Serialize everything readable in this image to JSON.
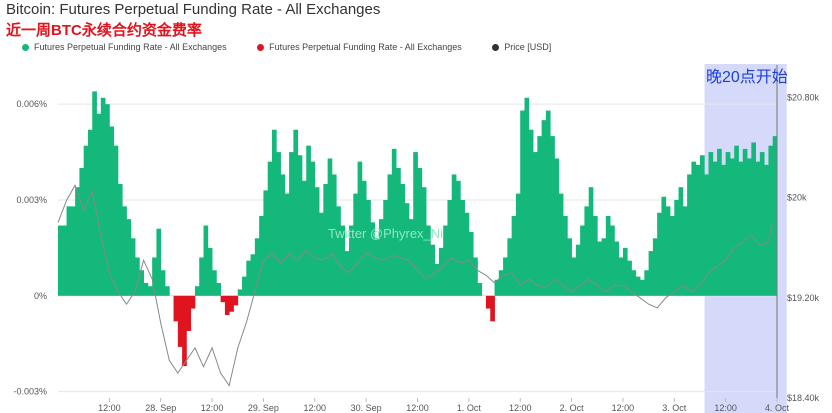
{
  "title": "Bitcoin: Futures Perpetual Funding Rate - All Exchanges",
  "subtitle": "近一周BTC永续合约资金费率",
  "legend": [
    {
      "label": "Futures Perpetual Funding Rate - All Exchanges",
      "color": "#14b87a"
    },
    {
      "label": "Futures Perpetual Funding Rate - All Exchanges",
      "color": "#e0141e"
    },
    {
      "label": "Price [USD]",
      "color": "#333333"
    }
  ],
  "watermark": "Twitter @Phyrex_Ni",
  "annotation": "晚20点开始",
  "colors": {
    "positive": "#14b87a",
    "negative": "#e0141e",
    "price": "#888888",
    "highlight": "#c8cdf8"
  },
  "chart_data": {
    "type": "bar",
    "title": "Bitcoin: Futures Perpetual Funding Rate - All Exchanges",
    "subtitle": "近一周BTC永续合约资金费率",
    "x_ticks": [
      "12:00",
      "28. Sep",
      "12:00",
      "29. Sep",
      "12:00",
      "30. Sep",
      "12:00",
      "1. Oct",
      "12:00",
      "2. Oct",
      "12:00",
      "3. Oct",
      "12:00",
      "4. Oct"
    ],
    "x_range_hours": [
      0,
      168
    ],
    "y_left_ticks": [
      "-0.003%",
      "0%",
      "0.003%",
      "0.006%"
    ],
    "y_left_range": [
      -0.0032,
      0.0066
    ],
    "y_right_ticks": [
      "$18.40k",
      "$19.20k",
      "$20k",
      "$20.80k"
    ],
    "y_right_range": [
      18400,
      20900
    ],
    "funding_rate_percent": [
      [
        0,
        0.0022
      ],
      [
        2,
        0.0028
      ],
      [
        4,
        0.0034
      ],
      [
        5,
        0.004
      ],
      [
        6,
        0.0047
      ],
      [
        7,
        0.0052
      ],
      [
        8,
        0.0064
      ],
      [
        9,
        0.0057
      ],
      [
        10,
        0.0062
      ],
      [
        11,
        0.006
      ],
      [
        12,
        0.0053
      ],
      [
        13,
        0.0047
      ],
      [
        14,
        0.0035
      ],
      [
        15,
        0.0028
      ],
      [
        16,
        0.0024
      ],
      [
        17,
        0.0018
      ],
      [
        18,
        0.0012
      ],
      [
        19,
        0.0008
      ],
      [
        20,
        0.0004
      ],
      [
        21,
        0.0003
      ],
      [
        22,
        0.0012
      ],
      [
        23,
        0.0021
      ],
      [
        24,
        0.0008
      ],
      [
        25,
        0.0003
      ],
      [
        26,
        0.0
      ],
      [
        27,
        -0.0008
      ],
      [
        28,
        -0.0016
      ],
      [
        29,
        -0.0022
      ],
      [
        30,
        -0.0011
      ],
      [
        31,
        -0.0004
      ],
      [
        32,
        0.0003
      ],
      [
        33,
        0.0012
      ],
      [
        34,
        0.0022
      ],
      [
        35,
        0.0015
      ],
      [
        36,
        0.0008
      ],
      [
        37,
        0.0004
      ],
      [
        38,
        -0.0002
      ],
      [
        39,
        -0.0006
      ],
      [
        40,
        -0.0005
      ],
      [
        41,
        -0.0003
      ],
      [
        42,
        0.0002
      ],
      [
        43,
        0.0006
      ],
      [
        44,
        0.0011
      ],
      [
        45,
        0.0013
      ],
      [
        46,
        0.0018
      ],
      [
        47,
        0.0025
      ],
      [
        48,
        0.0033
      ],
      [
        49,
        0.0042
      ],
      [
        50,
        0.0052
      ],
      [
        51,
        0.0045
      ],
      [
        52,
        0.0038
      ],
      [
        53,
        0.0032
      ],
      [
        54,
        0.0045
      ],
      [
        55,
        0.0052
      ],
      [
        56,
        0.0044
      ],
      [
        57,
        0.0036
      ],
      [
        58,
        0.0047
      ],
      [
        59,
        0.0042
      ],
      [
        60,
        0.0034
      ],
      [
        61,
        0.0026
      ],
      [
        62,
        0.0035
      ],
      [
        63,
        0.0043
      ],
      [
        64,
        0.0038
      ],
      [
        65,
        0.0028
      ],
      [
        66,
        0.0022
      ],
      [
        67,
        0.0014
      ],
      [
        68,
        0.0022
      ],
      [
        69,
        0.0032
      ],
      [
        70,
        0.0042
      ],
      [
        71,
        0.0036
      ],
      [
        72,
        0.003
      ],
      [
        73,
        0.0023
      ],
      [
        74,
        0.0018
      ],
      [
        75,
        0.0024
      ],
      [
        76,
        0.003
      ],
      [
        77,
        0.0038
      ],
      [
        78,
        0.0046
      ],
      [
        79,
        0.004
      ],
      [
        80,
        0.0035
      ],
      [
        81,
        0.0029
      ],
      [
        82,
        0.0024
      ],
      [
        83,
        0.0045
      ],
      [
        84,
        0.004
      ],
      [
        85,
        0.0034
      ],
      [
        86,
        0.0022
      ],
      [
        87,
        0.0016
      ],
      [
        88,
        0.001
      ],
      [
        89,
        0.0015
      ],
      [
        90,
        0.0022
      ],
      [
        91,
        0.003
      ],
      [
        92,
        0.0038
      ],
      [
        93,
        0.0036
      ],
      [
        94,
        0.003
      ],
      [
        95,
        0.0026
      ],
      [
        96,
        0.002
      ],
      [
        97,
        0.0012
      ],
      [
        98,
        0.0004
      ],
      [
        99,
        0.0
      ],
      [
        100,
        -0.0004
      ],
      [
        101,
        -0.0008
      ],
      [
        102,
        0.0005
      ],
      [
        103,
        0.0008
      ],
      [
        104,
        0.0012
      ],
      [
        105,
        0.0018
      ],
      [
        106,
        0.0025
      ],
      [
        107,
        0.0032
      ],
      [
        108,
        0.0058
      ],
      [
        109,
        0.0062
      ],
      [
        110,
        0.0052
      ],
      [
        111,
        0.0045
      ],
      [
        112,
        0.005
      ],
      [
        113,
        0.0055
      ],
      [
        114,
        0.0058
      ],
      [
        115,
        0.005
      ],
      [
        116,
        0.0043
      ],
      [
        117,
        0.0032
      ],
      [
        118,
        0.0025
      ],
      [
        119,
        0.0018
      ],
      [
        120,
        0.0012
      ],
      [
        121,
        0.0016
      ],
      [
        122,
        0.0022
      ],
      [
        123,
        0.0028
      ],
      [
        124,
        0.0034
      ],
      [
        125,
        0.0025
      ],
      [
        126,
        0.0017
      ],
      [
        127,
        0.0018
      ],
      [
        128,
        0.0025
      ],
      [
        129,
        0.0022
      ],
      [
        130,
        0.0017
      ],
      [
        131,
        0.0012
      ],
      [
        132,
        0.0015
      ],
      [
        133,
        0.0011
      ],
      [
        134,
        0.0008
      ],
      [
        135,
        0.0006
      ],
      [
        136,
        0.0005
      ],
      [
        137,
        0.0008
      ],
      [
        138,
        0.0014
      ],
      [
        139,
        0.0018
      ],
      [
        140,
        0.0026
      ],
      [
        141,
        0.0031
      ],
      [
        142,
        0.0028
      ],
      [
        143,
        0.0025
      ],
      [
        144,
        0.003
      ],
      [
        145,
        0.0034
      ],
      [
        146,
        0.0028
      ],
      [
        147,
        0.0038
      ],
      [
        148,
        0.0042
      ],
      [
        149,
        0.0041
      ],
      [
        150,
        0.0044
      ],
      [
        151,
        0.0038
      ],
      [
        152,
        0.0045
      ],
      [
        153,
        0.0042
      ],
      [
        154,
        0.0046
      ],
      [
        155,
        0.0041
      ],
      [
        156,
        0.0045
      ],
      [
        157,
        0.0043
      ],
      [
        158,
        0.0047
      ],
      [
        159,
        0.0042
      ],
      [
        160,
        0.0046
      ],
      [
        161,
        0.0043
      ],
      [
        162,
        0.0048
      ],
      [
        163,
        0.0042
      ],
      [
        164,
        0.0045
      ],
      [
        165,
        0.0041
      ],
      [
        166,
        0.0047
      ],
      [
        167,
        0.005
      ]
    ],
    "price_usd": [
      [
        0,
        19800
      ],
      [
        2,
        19980
      ],
      [
        4,
        20100
      ],
      [
        6,
        19900
      ],
      [
        8,
        20050
      ],
      [
        10,
        19700
      ],
      [
        12,
        19400
      ],
      [
        14,
        19250
      ],
      [
        16,
        19150
      ],
      [
        18,
        19250
      ],
      [
        20,
        19500
      ],
      [
        22,
        19350
      ],
      [
        24,
        19000
      ],
      [
        26,
        18700
      ],
      [
        28,
        18600
      ],
      [
        30,
        18700
      ],
      [
        32,
        18800
      ],
      [
        34,
        18650
      ],
      [
        36,
        18800
      ],
      [
        38,
        18600
      ],
      [
        40,
        18500
      ],
      [
        42,
        18800
      ],
      [
        44,
        19000
      ],
      [
        46,
        19250
      ],
      [
        48,
        19500
      ],
      [
        50,
        19550
      ],
      [
        52,
        19480
      ],
      [
        54,
        19550
      ],
      [
        56,
        19500
      ],
      [
        58,
        19580
      ],
      [
        60,
        19520
      ],
      [
        62,
        19500
      ],
      [
        64,
        19550
      ],
      [
        66,
        19450
      ],
      [
        68,
        19400
      ],
      [
        70,
        19480
      ],
      [
        72,
        19560
      ],
      [
        74,
        19520
      ],
      [
        76,
        19500
      ],
      [
        78,
        19540
      ],
      [
        80,
        19520
      ],
      [
        82,
        19500
      ],
      [
        84,
        19420
      ],
      [
        86,
        19350
      ],
      [
        88,
        19400
      ],
      [
        90,
        19450
      ],
      [
        92,
        19520
      ],
      [
        94,
        19480
      ],
      [
        96,
        19500
      ],
      [
        98,
        19420
      ],
      [
        100,
        19380
      ],
      [
        102,
        19320
      ],
      [
        104,
        19380
      ],
      [
        106,
        19400
      ],
      [
        108,
        19300
      ],
      [
        110,
        19350
      ],
      [
        112,
        19300
      ],
      [
        114,
        19280
      ],
      [
        116,
        19350
      ],
      [
        118,
        19300
      ],
      [
        120,
        19250
      ],
      [
        122,
        19300
      ],
      [
        124,
        19350
      ],
      [
        126,
        19300
      ],
      [
        128,
        19250
      ],
      [
        130,
        19300
      ],
      [
        132,
        19300
      ],
      [
        134,
        19250
      ],
      [
        136,
        19200
      ],
      [
        138,
        19150
      ],
      [
        140,
        19120
      ],
      [
        142,
        19200
      ],
      [
        144,
        19250
      ],
      [
        146,
        19300
      ],
      [
        148,
        19250
      ],
      [
        150,
        19300
      ],
      [
        152,
        19400
      ],
      [
        154,
        19450
      ],
      [
        156,
        19500
      ],
      [
        158,
        19600
      ],
      [
        160,
        19650
      ],
      [
        162,
        19700
      ],
      [
        164,
        19620
      ],
      [
        166,
        19650
      ],
      [
        167,
        19800
      ]
    ],
    "highlight_range_hours": [
      152,
      167
    ],
    "annotations": [
      "晚20点开始"
    ],
    "watermark": "Twitter @Phyrex_Ni"
  }
}
